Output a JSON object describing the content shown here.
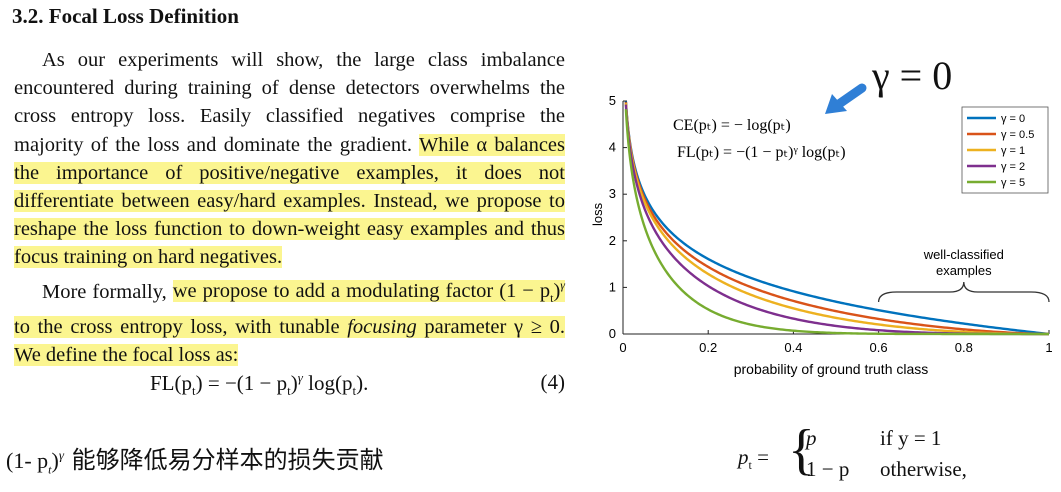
{
  "heading": "3.2. Focal Loss Definition",
  "para1": {
    "plain": "As our experiments will show, the large class imbalance encountered during training of dense detectors overwhelms the cross entropy loss. Easily classified negatives comprise the majority of the loss and dominate the gradient. ",
    "highlighted": "While α balances the importance of positive/negative examples, it does not differentiate between easy/hard examples. Instead, we propose to reshape the loss function to down-weight easy examples and thus focus training on hard negatives."
  },
  "para2": {
    "plain_start": "More formally, ",
    "highlighted_a": "we propose to add a modulating factor (1 − p",
    "sub_t": "t",
    "highlighted_b": ")",
    "sup_gamma": "γ",
    "highlighted_c": " to the cross entropy loss, with tunable ",
    "highlighted_focusing": "focusing",
    "highlighted_d": " parameter γ ≥ 0. We define the focal loss as:"
  },
  "equation4": {
    "lhs": "FL(p",
    "text": ") = −(1 − p",
    "text2": ")",
    "text3": " log(p",
    "text4": ").",
    "number": "(4)"
  },
  "chinese_note": {
    "factor": "(1- p",
    "factor_sup": "γ",
    "factor_sub": "t",
    "text": " 能够降低易分样本的损失贡献"
  },
  "callout": {
    "text": "γ = 0",
    "arrow_color": "#2f7fd6"
  },
  "pt_definition": {
    "lhs": "p",
    "case1_value": "p",
    "case1_cond": "if y = 1",
    "case2_value": "1 − p",
    "case2_cond": "otherwise,"
  },
  "chart_data": {
    "type": "line",
    "xlabel": "probability of ground truth class",
    "ylabel": "loss",
    "xlim": [
      0,
      1
    ],
    "ylim": [
      0,
      5
    ],
    "x_ticks": [
      "0",
      "0.2",
      "0.4",
      "0.6",
      "0.8",
      "1"
    ],
    "y_ticks": [
      "0",
      "1",
      "2",
      "3",
      "4",
      "5"
    ],
    "grid": false,
    "legend_position": "top-right",
    "formula_ce": "CE(pₜ) = − log(pₜ)",
    "formula_fl": "FL(pₜ) = −(1 − pₜ)ᵞ log(pₜ)",
    "annotation": "well-classified examples",
    "annotation_range": [
      0.6,
      1.0
    ],
    "series": [
      {
        "name": "γ = 0",
        "gamma": 0,
        "color": "#0072bd"
      },
      {
        "name": "γ = 0.5",
        "gamma": 0.5,
        "color": "#d95319"
      },
      {
        "name": "γ = 1",
        "gamma": 1,
        "color": "#edb120"
      },
      {
        "name": "γ = 2",
        "gamma": 2,
        "color": "#7e2f8e"
      },
      {
        "name": "γ = 5",
        "gamma": 5,
        "color": "#77ac30"
      }
    ]
  }
}
